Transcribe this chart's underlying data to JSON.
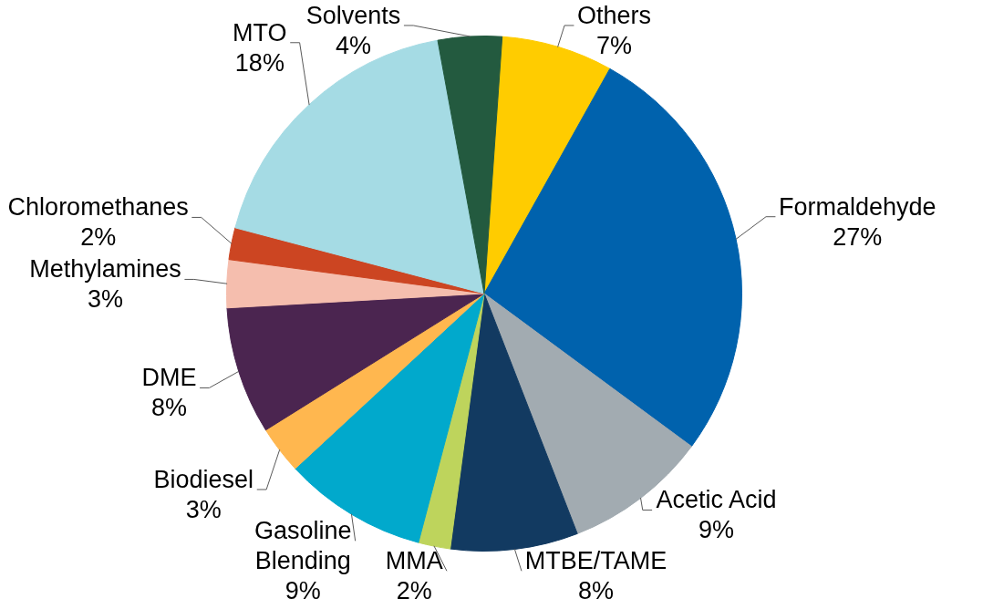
{
  "chart_data": {
    "type": "pie",
    "categories": [
      "Others",
      "Formaldehyde",
      "Acetic Acid",
      "MTBE/TAME",
      "MMA",
      "Gasoline Blending",
      "Biodiesel",
      "DME",
      "Methylamines",
      "Chloromethanes",
      "MTO",
      "Solvents"
    ],
    "values": [
      7,
      27,
      9,
      8,
      2,
      9,
      3,
      8,
      3,
      2,
      18,
      4
    ],
    "colors": [
      "#ffcc00",
      "#0062ad",
      "#a2abb1",
      "#123a61",
      "#bed45c",
      "#01a9cc",
      "#ffb74f",
      "#4b2550",
      "#f5beae",
      "#cc4522",
      "#a5dbe4",
      "#235a3f"
    ],
    "value_labels": [
      "7%",
      "27%",
      "9%",
      "8%",
      "2%",
      "9%",
      "3%",
      "8%",
      "3%",
      "2%",
      "18%",
      "4%"
    ]
  }
}
